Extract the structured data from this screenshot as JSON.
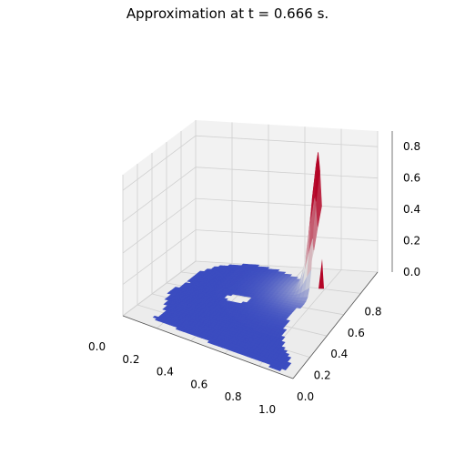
{
  "chart_data": {
    "type": "surface3d",
    "title": "Approximation at t = 0.666 s.",
    "colormap": "coolwarm",
    "colors": {
      "low": "#3b4cc0",
      "mid": "#dddddd",
      "high": "#b40426",
      "pane": "#f2f2f2",
      "grid": "#d0d0d0"
    },
    "xlim": [
      0,
      1
    ],
    "ylim": [
      0,
      1
    ],
    "zlim": [
      0,
      0.9
    ],
    "x_ticks": [
      "0.0",
      "0.2",
      "0.4",
      "0.6",
      "0.8",
      "1.0"
    ],
    "y_ticks": [
      "0.0",
      "0.2",
      "0.4",
      "0.6",
      "0.8"
    ],
    "z_ticks": [
      "0.0",
      "0.2",
      "0.4",
      "0.6",
      "0.8"
    ],
    "x_tick_values": [
      0,
      0.2,
      0.4,
      0.6,
      0.8,
      1.0
    ],
    "y_tick_values": [
      0,
      0.2,
      0.4,
      0.6,
      0.8
    ],
    "z_tick_values": [
      0,
      0.2,
      0.4,
      0.6,
      0.8
    ],
    "grid": true,
    "domain_boundary": [
      [
        0.12,
        0.3
      ],
      [
        0.06,
        0.5
      ],
      [
        0.1,
        0.66
      ],
      [
        0.08,
        0.82
      ],
      [
        0.16,
        0.96
      ],
      [
        0.3,
        1.0
      ],
      [
        0.44,
        0.96
      ],
      [
        0.56,
        0.9
      ],
      [
        0.66,
        0.86
      ],
      [
        0.76,
        0.84
      ],
      [
        0.76,
        0.66
      ],
      [
        0.74,
        0.5
      ],
      [
        0.78,
        0.34
      ],
      [
        0.84,
        0.22
      ],
      [
        0.94,
        0.1
      ],
      [
        0.92,
        0.03
      ],
      [
        0.64,
        0.04
      ],
      [
        0.42,
        0.06
      ],
      [
        0.26,
        0.08
      ],
      [
        0.13,
        0.1
      ],
      [
        0.16,
        0.2
      ]
    ],
    "hole_boundary": [
      [
        0.34,
        0.58
      ],
      [
        0.4,
        0.62
      ],
      [
        0.48,
        0.6
      ],
      [
        0.48,
        0.54
      ],
      [
        0.4,
        0.52
      ],
      [
        0.35,
        0.54
      ]
    ],
    "peak": {
      "x": 0.78,
      "y": 0.8,
      "z": 0.95,
      "sigma": 0.16
    }
  }
}
